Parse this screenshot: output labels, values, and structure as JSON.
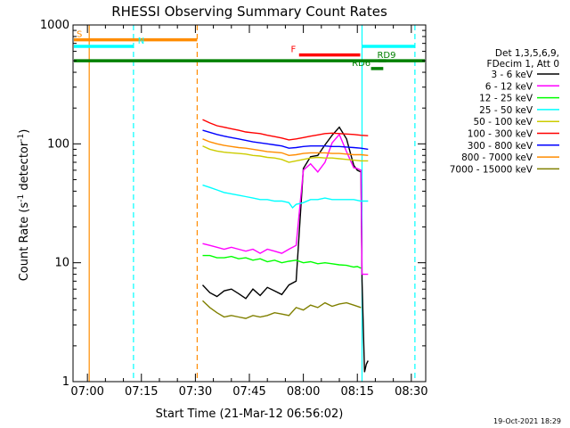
{
  "chart_data": {
    "type": "line",
    "title": "RHESSI Observing Summary Count Rates",
    "xlabel": "Start Time (21-Mar-12 06:56:02)",
    "ylabel_main": "Count Rate (s",
    "ylabel_sup1": "-1",
    "ylabel_mid": " detector",
    "ylabel_sup2": "-1",
    "ylabel_end": ")",
    "yscale": "log",
    "xlim_minutes": [
      -4,
      94
    ],
    "ylim": [
      1,
      1000
    ],
    "x_ticks": [
      {
        "minute": 0,
        "label": "07:00"
      },
      {
        "minute": 15,
        "label": "07:15"
      },
      {
        "minute": 30,
        "label": "07:30"
      },
      {
        "minute": 45,
        "label": "07:45"
      },
      {
        "minute": 60,
        "label": "08:00"
      },
      {
        "minute": 75,
        "label": "08:15"
      },
      {
        "minute": 90,
        "label": "08:30"
      }
    ],
    "y_ticks": [
      {
        "value": 1,
        "label": "1"
      },
      {
        "value": 10,
        "label": "10"
      },
      {
        "value": 100,
        "label": "100"
      },
      {
        "value": 1000,
        "label": "1000"
      }
    ],
    "legend_header": [
      "Det 1,3,5,6,9,",
      "FDecim 1, Att 0"
    ],
    "footer_date": "19-Oct-2021 18:29",
    "series": [
      {
        "name": "3 - 6 keV",
        "color": "#000000",
        "x": [
          32,
          34,
          36,
          38,
          40,
          42,
          44,
          46,
          48,
          50,
          52,
          54,
          56,
          58,
          60,
          62,
          64,
          66,
          68,
          70,
          72,
          74,
          75,
          76,
          76.3,
          77,
          77.5,
          78
        ],
        "values": [
          6.5,
          5.6,
          5.2,
          5.8,
          6,
          5.5,
          5,
          6,
          5.3,
          6.2,
          5.8,
          5.4,
          6.5,
          7,
          62,
          78,
          80,
          98,
          118,
          138,
          110,
          66,
          60,
          58,
          7,
          1.2,
          1.4,
          1.5
        ]
      },
      {
        "name": "6 - 12 keV",
        "color": "#ff00ff",
        "x": [
          32,
          34,
          36,
          38,
          40,
          42,
          44,
          46,
          48,
          50,
          52,
          54,
          56,
          58,
          60,
          62,
          64,
          66,
          68,
          70,
          72,
          74,
          75,
          76,
          76.3,
          78
        ],
        "values": [
          14.5,
          14,
          13.5,
          13,
          13.5,
          13,
          12.5,
          13,
          12,
          13,
          12.5,
          12,
          13,
          14,
          60,
          68,
          58,
          70,
          102,
          120,
          86,
          63,
          62,
          60,
          8,
          8
        ]
      },
      {
        "name": "12 - 25 keV",
        "color": "#00ff00",
        "x": [
          32,
          34,
          36,
          38,
          40,
          42,
          44,
          46,
          48,
          50,
          52,
          54,
          56,
          58,
          60,
          62,
          64,
          66,
          68,
          70,
          72,
          74,
          75,
          76
        ],
        "values": [
          11.5,
          11.5,
          11,
          11,
          11.3,
          10.8,
          11,
          10.5,
          10.8,
          10.2,
          10.5,
          10,
          10.3,
          10.5,
          10,
          10.2,
          9.8,
          10,
          9.8,
          9.6,
          9.5,
          9.2,
          9.3,
          9
        ]
      },
      {
        "name": "25 - 50 keV",
        "color": "#00ffff",
        "x": [
          32,
          34,
          36,
          38,
          40,
          42,
          44,
          46,
          48,
          50,
          52,
          54,
          56,
          57,
          58,
          60,
          62,
          64,
          66,
          68,
          70,
          72,
          74,
          76,
          78
        ],
        "values": [
          45,
          43,
          41,
          39,
          38,
          37,
          36,
          35,
          34,
          34,
          33,
          33,
          32,
          29,
          31,
          32,
          34,
          34,
          35,
          34,
          34,
          34,
          34,
          33,
          33
        ]
      },
      {
        "name": "50 - 100 keV",
        "color": "#cccc00",
        "x": [
          32,
          34,
          36,
          38,
          40,
          42,
          44,
          46,
          48,
          50,
          52,
          54,
          56,
          58,
          60,
          62,
          64,
          66,
          68,
          70,
          72,
          74,
          76,
          78
        ],
        "values": [
          96,
          90,
          87,
          85,
          84,
          83,
          82,
          80,
          79,
          77,
          76,
          74,
          70,
          72,
          74,
          76,
          77,
          76,
          76,
          75,
          74,
          73,
          72,
          72
        ]
      },
      {
        "name": "100 - 300 keV",
        "color": "#ff0000",
        "x": [
          32,
          34,
          36,
          38,
          40,
          42,
          44,
          46,
          48,
          50,
          52,
          54,
          56,
          58,
          60,
          62,
          64,
          66,
          68,
          70,
          72,
          74,
          76,
          78
        ],
        "values": [
          160,
          150,
          142,
          138,
          134,
          130,
          126,
          124,
          122,
          118,
          115,
          112,
          108,
          110,
          113,
          116,
          119,
          122,
          123,
          122,
          121,
          120,
          118,
          117
        ]
      },
      {
        "name": "300 - 800 keV",
        "color": "#0000ff",
        "x": [
          32,
          34,
          36,
          38,
          40,
          42,
          44,
          46,
          48,
          50,
          52,
          54,
          56,
          58,
          60,
          62,
          64,
          66,
          68,
          70,
          72,
          74,
          76,
          78
        ],
        "values": [
          130,
          125,
          120,
          116,
          113,
          110,
          107,
          104,
          102,
          100,
          98,
          96,
          92,
          93,
          95,
          96,
          96,
          96,
          95,
          95,
          94,
          93,
          92,
          90
        ]
      },
      {
        "name": "800 - 7000 keV",
        "color": "#ff8c00",
        "x": [
          32,
          34,
          36,
          38,
          40,
          42,
          44,
          46,
          48,
          50,
          52,
          54,
          56,
          58,
          60,
          62,
          64,
          66,
          68,
          70,
          72,
          74,
          76,
          78
        ],
        "values": [
          110,
          104,
          100,
          97,
          95,
          93,
          92,
          90,
          88,
          86,
          85,
          84,
          80,
          81,
          83,
          84,
          84,
          84,
          83,
          83,
          82,
          81,
          81,
          80
        ]
      },
      {
        "name": "7000 - 15000 keV",
        "color": "#808000",
        "x": [
          32,
          34,
          36,
          38,
          40,
          42,
          44,
          46,
          48,
          50,
          52,
          54,
          56,
          58,
          60,
          62,
          64,
          66,
          68,
          70,
          72,
          74,
          76
        ],
        "values": [
          4.8,
          4.2,
          3.8,
          3.5,
          3.6,
          3.5,
          3.4,
          3.6,
          3.5,
          3.6,
          3.8,
          3.7,
          3.6,
          4.2,
          4,
          4.4,
          4.2,
          4.6,
          4.3,
          4.5,
          4.6,
          4.4,
          4.2
        ]
      }
    ],
    "vertical_markers": [
      {
        "minute": 0.5,
        "color": "#ff8c00",
        "style": "solid"
      },
      {
        "minute": 12.8,
        "color": "#00ffff",
        "style": "dashed"
      },
      {
        "minute": 30.5,
        "color": "#ff8c00",
        "style": "dashed"
      },
      {
        "minute": 76.3,
        "color": "#00ffff",
        "style": "solid"
      },
      {
        "minute": 91,
        "color": "#00ffff",
        "style": "dashed"
      }
    ],
    "flag_bars": [
      {
        "label": "S",
        "x0": -4,
        "x1": 30.5,
        "value": 750,
        "color": "#ff8c00",
        "label_minute": -3
      },
      {
        "label": "N",
        "x0": -4,
        "x1": 12.8,
        "value": 660,
        "color": "#00ffff",
        "label_minute": 14
      },
      {
        "label": "F",
        "x0": 58.8,
        "x1": 75.8,
        "value": 560,
        "color": "#ff0000",
        "label_minute": 56.5
      },
      {
        "label": "",
        "x0": 76.3,
        "x1": 91,
        "value": 660,
        "color": "#00ffff",
        "label_minute": 0
      },
      {
        "label": "",
        "x0": -4,
        "x1": 94,
        "value": 500,
        "color": "#008000",
        "label_minute": 0
      },
      {
        "label": "RD9",
        "x0": 80.8,
        "x1": 83,
        "value": 500,
        "color": "#008000",
        "label_minute": 80.5
      },
      {
        "label": "RD6",
        "x0": 78.8,
        "x1": 82.2,
        "value": 430,
        "color": "#008000",
        "label_minute": 73.5
      }
    ]
  }
}
